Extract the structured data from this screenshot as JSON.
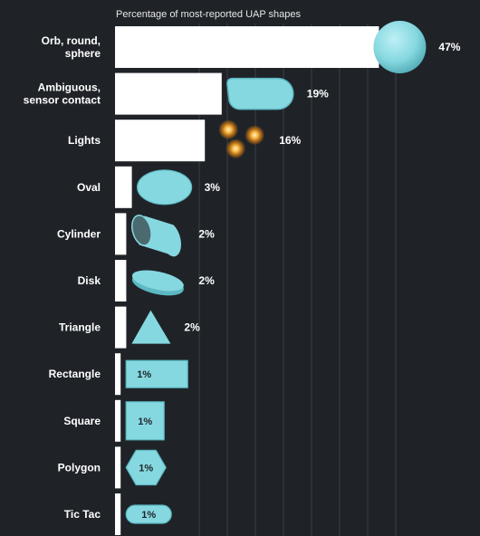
{
  "chart_data": {
    "type": "bar",
    "orientation": "horizontal",
    "title": "Percentage of most-reported UAP shapes",
    "xlabel": "",
    "ylabel": "",
    "grid": true,
    "xlim": [
      0,
      55
    ],
    "categories": [
      [
        "Orb, round,",
        "sphere"
      ],
      [
        "Ambiguous,",
        "sensor contact"
      ],
      [
        "Lights"
      ],
      [
        "Oval"
      ],
      [
        "Cylinder"
      ],
      [
        "Disk"
      ],
      [
        "Triangle"
      ],
      [
        "Rectangle"
      ],
      [
        "Square"
      ],
      [
        "Polygon"
      ],
      [
        "Tic Tac"
      ]
    ],
    "values": [
      47,
      19,
      16,
      3,
      2,
      2,
      2,
      1,
      1,
      1,
      1
    ],
    "value_labels": [
      "47%",
      "19%",
      "16%",
      "3%",
      "2%",
      "2%",
      "2%",
      "1%",
      "1%",
      "1%",
      "1%"
    ],
    "icons": [
      "sphere-icon",
      "capsule-icon",
      "lights-icon",
      "oval-icon",
      "cylinder-icon",
      "disk-icon",
      "triangle-icon",
      "rectangle-icon",
      "square-icon",
      "polygon-icon",
      "tictac-icon"
    ],
    "colors": {
      "background": "#1f2328",
      "bar": "#ffffff",
      "shape": "#86d8e0",
      "shape_dark": "#5cb8c2",
      "light_glow": "#f5a623",
      "grid": "#3a3f45"
    }
  }
}
